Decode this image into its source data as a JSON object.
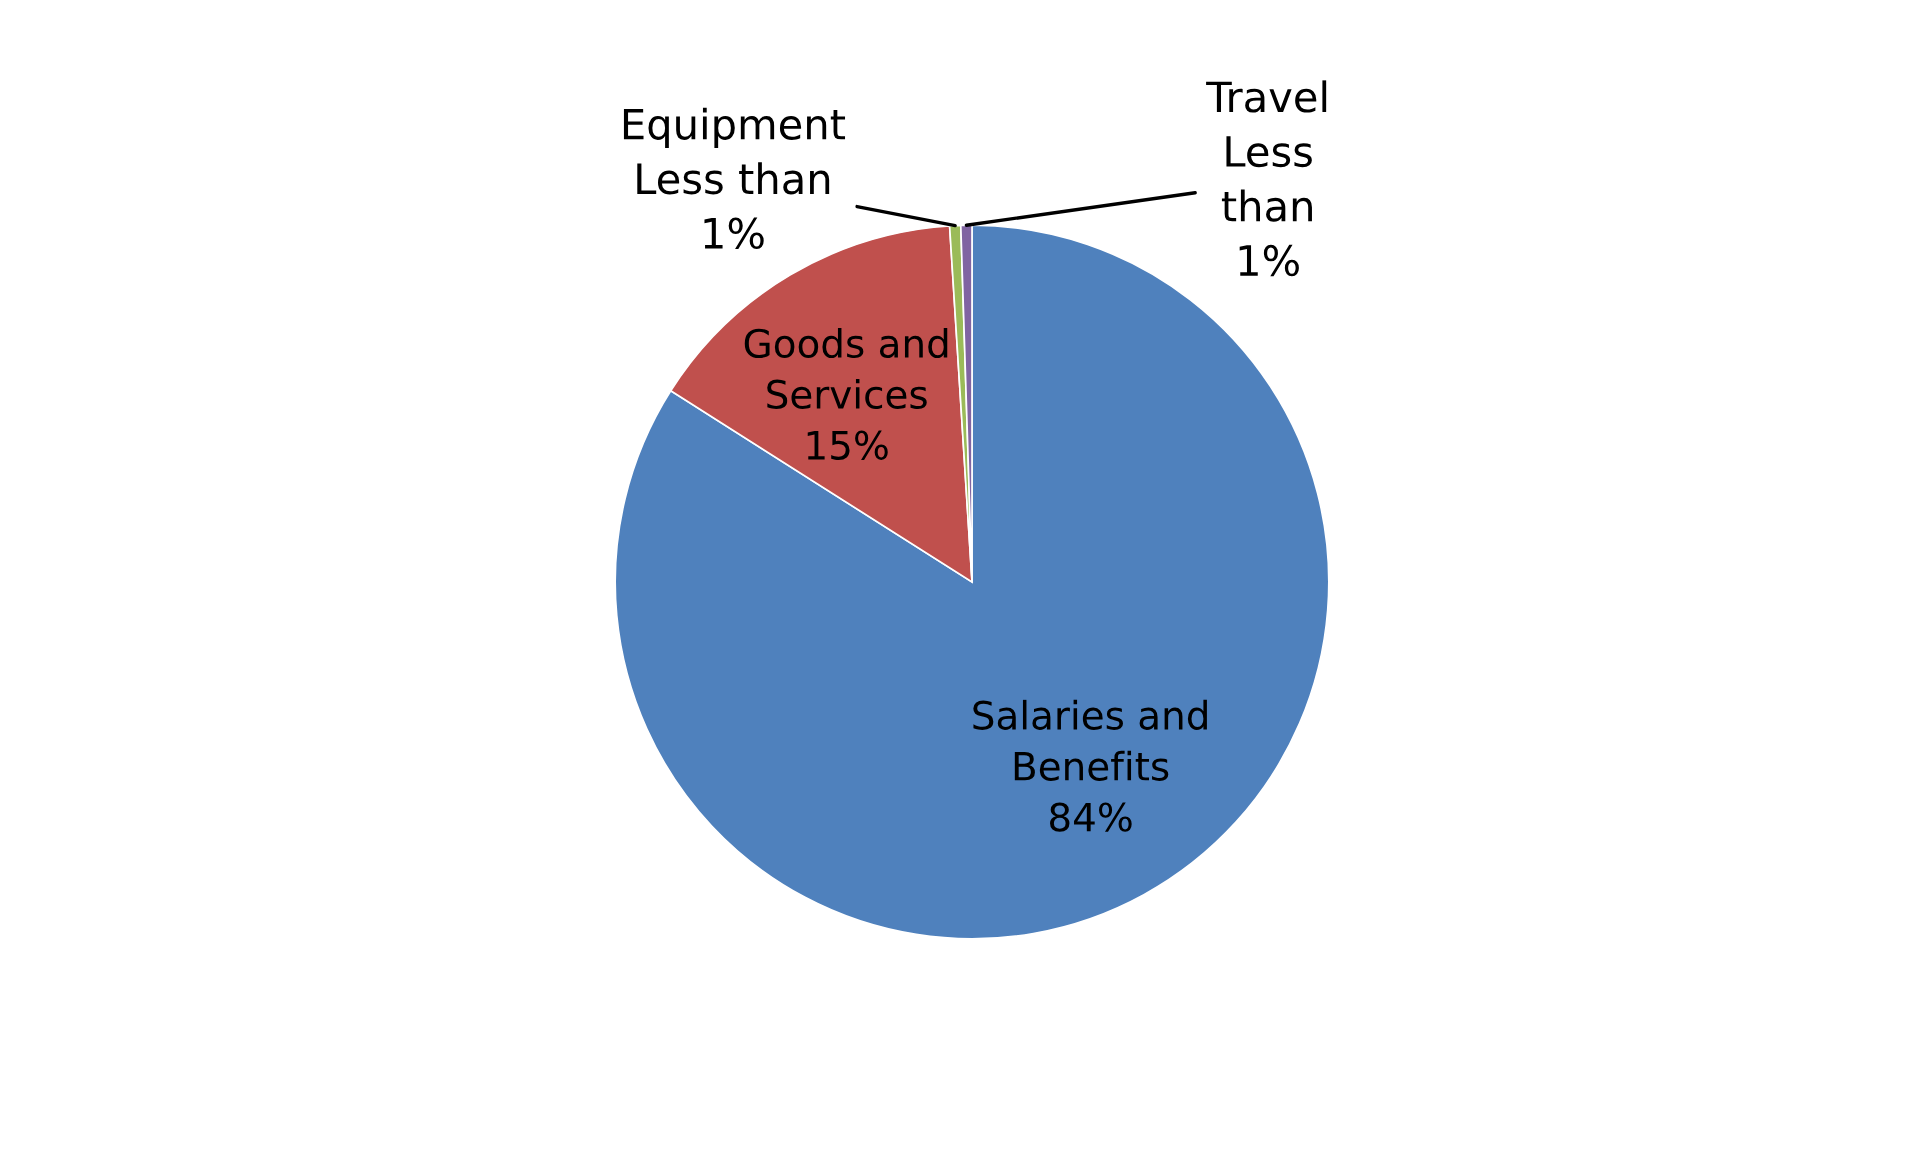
{
  "chart_data": {
    "type": "pie",
    "categories": [
      "Salaries and\nBenefits",
      "Goods and\nServices",
      "Equipment\nLess than",
      "Travel\nLess\nthan"
    ],
    "values": [
      84,
      15,
      0.5,
      0.5
    ],
    "value_labels": [
      "84%",
      "15%",
      "1%",
      "1%"
    ],
    "colors": [
      "#4f81bd",
      "#c0504d",
      "#9bbb59",
      "#8064a2"
    ],
    "legend": false
  }
}
